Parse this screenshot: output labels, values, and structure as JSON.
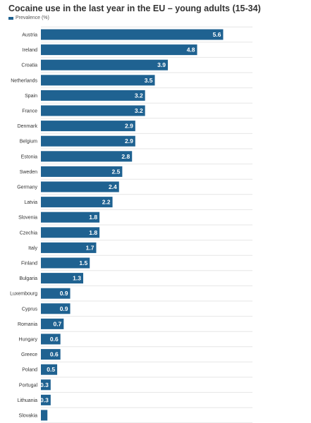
{
  "colors": {
    "bar": "#1f6291",
    "grid": "#e6e6e6",
    "background": "#ffffff"
  },
  "chart_data": {
    "type": "bar",
    "orientation": "horizontal",
    "title": "Cocaine use in the last year in the EU – young adults (15-34)",
    "legend": {
      "position": "top-left",
      "entries": [
        "Prevalence (%)"
      ]
    },
    "grid": true,
    "xlim": [
      0,
      6.5
    ],
    "categories": [
      "Austria",
      "Ireland",
      "Croatia",
      "Netherlands",
      "Spain",
      "France",
      "Denmark",
      "Belgium",
      "Estonia",
      "Sweden",
      "Germany",
      "Latvia",
      "Slovenia",
      "Czechia",
      "Italy",
      "Finland",
      "Bulgaria",
      "Luxembourg",
      "Cyprus",
      "Romania",
      "Hungary",
      "Greece",
      "Poland",
      "Portugal",
      "Lithuania",
      "Slovakia"
    ],
    "series": [
      {
        "name": "Prevalence (%)",
        "values": [
          5.6,
          4.8,
          3.9,
          3.5,
          3.2,
          3.2,
          2.9,
          2.9,
          2.8,
          2.5,
          2.4,
          2.2,
          1.8,
          1.8,
          1.7,
          1.5,
          1.3,
          0.9,
          0.9,
          0.7,
          0.6,
          0.6,
          0.5,
          0.3,
          0.3,
          0.2
        ],
        "data_labels": [
          "5.6",
          "4.8",
          "3.9",
          "3.5",
          "3.2",
          "3.2",
          "2.9",
          "2.9",
          "2.8",
          "2.5",
          "2.4",
          "2.2",
          "1.8",
          "1.8",
          "1.7",
          "1.5",
          "1.3",
          "0.9",
          "0.9",
          "0.7",
          "0.6",
          "0.6",
          "0.5",
          "0.3",
          "0.3",
          ""
        ]
      }
    ]
  }
}
